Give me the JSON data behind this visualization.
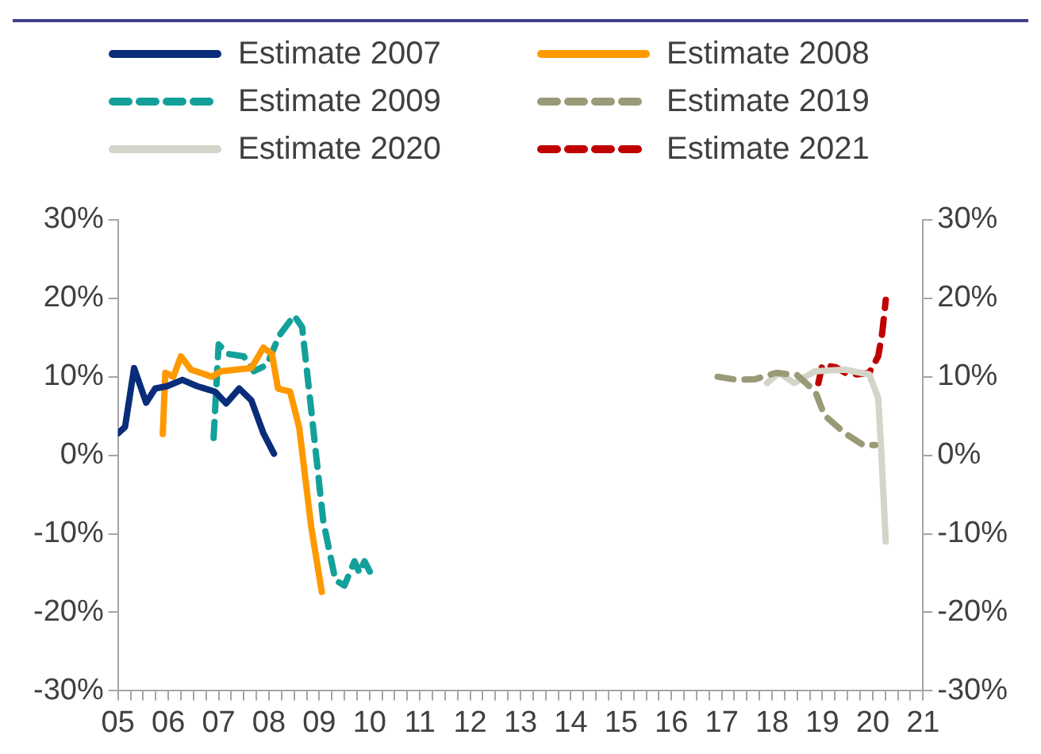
{
  "chart_data": {
    "type": "line",
    "legend": "top",
    "grid": false,
    "marker": "none",
    "xlim": [
      2005,
      2021
    ],
    "xticks": [
      {
        "value": 2005,
        "label": "05"
      },
      {
        "value": 2005.25,
        "label": null
      },
      {
        "value": 2005.5,
        "label": null
      },
      {
        "value": 2005.75,
        "label": null
      },
      {
        "value": 2006,
        "label": "06"
      },
      {
        "value": 2006.25,
        "label": null
      },
      {
        "value": 2006.5,
        "label": null
      },
      {
        "value": 2006.75,
        "label": null
      },
      {
        "value": 2007,
        "label": "07"
      },
      {
        "value": 2007.25,
        "label": null
      },
      {
        "value": 2007.5,
        "label": null
      },
      {
        "value": 2007.75,
        "label": null
      },
      {
        "value": 2008,
        "label": "08"
      },
      {
        "value": 2008.25,
        "label": null
      },
      {
        "value": 2008.5,
        "label": null
      },
      {
        "value": 2008.75,
        "label": null
      },
      {
        "value": 2009,
        "label": "09"
      },
      {
        "value": 2009.25,
        "label": null
      },
      {
        "value": 2009.5,
        "label": null
      },
      {
        "value": 2009.75,
        "label": null
      },
      {
        "value": 2010,
        "label": "10"
      },
      {
        "value": 2010.25,
        "label": null
      },
      {
        "value": 2010.5,
        "label": null
      },
      {
        "value": 2010.75,
        "label": null
      },
      {
        "value": 2011,
        "label": "11"
      },
      {
        "value": 2011.25,
        "label": null
      },
      {
        "value": 2011.5,
        "label": null
      },
      {
        "value": 2011.75,
        "label": null
      },
      {
        "value": 2012,
        "label": "12"
      },
      {
        "value": 2012.25,
        "label": null
      },
      {
        "value": 2012.5,
        "label": null
      },
      {
        "value": 2012.75,
        "label": null
      },
      {
        "value": 2013,
        "label": "13"
      },
      {
        "value": 2013.25,
        "label": null
      },
      {
        "value": 2013.5,
        "label": null
      },
      {
        "value": 2013.75,
        "label": null
      },
      {
        "value": 2014,
        "label": "14"
      },
      {
        "value": 2014.25,
        "label": null
      },
      {
        "value": 2014.5,
        "label": null
      },
      {
        "value": 2014.75,
        "label": null
      },
      {
        "value": 2015,
        "label": "15"
      },
      {
        "value": 2015.25,
        "label": null
      },
      {
        "value": 2015.5,
        "label": null
      },
      {
        "value": 2015.75,
        "label": null
      },
      {
        "value": 2016,
        "label": "16"
      },
      {
        "value": 2016.25,
        "label": null
      },
      {
        "value": 2016.5,
        "label": null
      },
      {
        "value": 2016.75,
        "label": null
      },
      {
        "value": 2017,
        "label": "17"
      },
      {
        "value": 2017.25,
        "label": null
      },
      {
        "value": 2017.5,
        "label": null
      },
      {
        "value": 2017.75,
        "label": null
      },
      {
        "value": 2018,
        "label": "18"
      },
      {
        "value": 2018.25,
        "label": null
      },
      {
        "value": 2018.5,
        "label": null
      },
      {
        "value": 2018.75,
        "label": null
      },
      {
        "value": 2019,
        "label": "19"
      },
      {
        "value": 2019.25,
        "label": null
      },
      {
        "value": 2019.5,
        "label": null
      },
      {
        "value": 2019.75,
        "label": null
      },
      {
        "value": 2020,
        "label": "20"
      },
      {
        "value": 2020.25,
        "label": null
      },
      {
        "value": 2020.5,
        "label": null
      },
      {
        "value": 2020.75,
        "label": null
      },
      {
        "value": 2021,
        "label": "21"
      }
    ],
    "ylim": [
      -30,
      30
    ],
    "yticks": [
      {
        "value": -30,
        "label": "-30%"
      },
      {
        "value": -20,
        "label": "-20%"
      },
      {
        "value": -10,
        "label": "-10%"
      },
      {
        "value": 0,
        "label": "0%"
      },
      {
        "value": 10,
        "label": "10%"
      },
      {
        "value": 20,
        "label": "20%"
      },
      {
        "value": 30,
        "label": "30%"
      }
    ],
    "y2lim": [
      -30,
      30
    ],
    "y2ticks": [
      {
        "value": -30,
        "label": "-30%"
      },
      {
        "value": -20,
        "label": "-20%"
      },
      {
        "value": -10,
        "label": "-10%"
      },
      {
        "value": 0,
        "label": "0%"
      },
      {
        "value": 10,
        "label": "10%"
      },
      {
        "value": 20,
        "label": "20%"
      },
      {
        "value": 30,
        "label": "30%"
      }
    ],
    "series": [
      {
        "name": "Estimate 2007",
        "color": "#0a2d7a",
        "line_style": "solid",
        "x": [
          2005.0,
          2005.14,
          2005.32,
          2005.56,
          2005.74,
          2005.98,
          2006.28,
          2006.57,
          2006.93,
          2007.15,
          2007.41,
          2007.65,
          2007.89,
          2008.1
        ],
        "values": [
          2.8,
          3.6,
          11.1,
          6.7,
          8.5,
          8.8,
          9.6,
          8.8,
          8.1,
          6.6,
          8.5,
          7.0,
          2.8,
          0.2
        ]
      },
      {
        "name": "Estimate 2008",
        "color": "#ff9900",
        "line_style": "solid",
        "x": [
          2005.89,
          2005.94,
          2006.1,
          2006.25,
          2006.45,
          2006.87,
          2007.05,
          2007.65,
          2007.89,
          2008.06,
          2008.18,
          2008.42,
          2008.6,
          2008.84,
          2009.05
        ],
        "values": [
          2.7,
          10.5,
          10.0,
          12.6,
          10.9,
          10.0,
          10.7,
          11.1,
          13.7,
          12.9,
          8.5,
          8.1,
          3.6,
          -9.1,
          -17.4
        ]
      },
      {
        "name": "Estimate 2009",
        "color": "#13a09a",
        "line_style": "dashed",
        "x": [
          2006.9,
          2007.0,
          2007.2,
          2007.5,
          2007.7,
          2007.96,
          2008.2,
          2008.5,
          2008.66,
          2008.84,
          2009.08,
          2009.32,
          2009.5,
          2009.7,
          2009.8,
          2009.9,
          2010.1
        ],
        "values": [
          2.2,
          14.1,
          12.9,
          12.6,
          10.7,
          11.5,
          15.2,
          17.8,
          16.3,
          5.8,
          -8.4,
          -15.9,
          -16.6,
          -13.5,
          -15,
          -13.5,
          -16
        ]
      },
      {
        "name": "Estimate 2019",
        "color": "#9a9a78",
        "line_style": "dashed",
        "x": [
          2016.92,
          2017.31,
          2017.67,
          2018.08,
          2018.5,
          2018.86,
          2019.04,
          2019.45,
          2019.81,
          2020.05
        ],
        "values": [
          10.0,
          9.6,
          9.7,
          10.5,
          10.2,
          8.1,
          5.1,
          2.8,
          1.3,
          1.3
        ]
      },
      {
        "name": "Estimate 2020",
        "color": "#d4d5c8",
        "line_style": "solid",
        "x": [
          2017.9,
          2018.14,
          2018.44,
          2018.86,
          2019.45,
          2019.93,
          2020.11,
          2020.17,
          2020.26
        ],
        "values": [
          9.2,
          10.5,
          9.2,
          10.7,
          10.9,
          10.3,
          7.3,
          0.6,
          -11.0
        ]
      },
      {
        "name": "Estimate 2021",
        "color": "#c00000",
        "line_style": "dashed",
        "x": [
          2018.92,
          2019.0,
          2019.27,
          2019.45,
          2019.69,
          2019.93,
          2020.11,
          2020.19,
          2020.26
        ],
        "values": [
          9.2,
          11.5,
          11.2,
          10.5,
          10.3,
          10.5,
          12.6,
          15.6,
          19.8
        ]
      }
    ]
  }
}
